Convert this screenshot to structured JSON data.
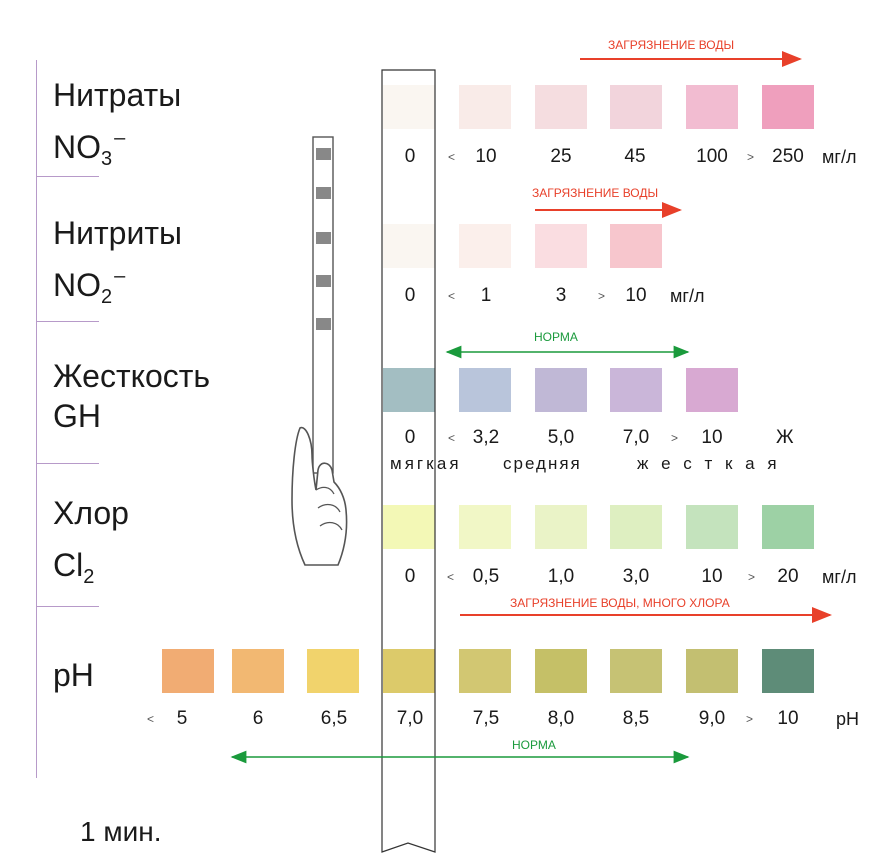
{
  "parameters": [
    {
      "name": "Нитраты",
      "formula": {
        "base": "NO",
        "sub": "3",
        "sup": "–"
      },
      "swatches": [
        "#faf6f1",
        "#f9ebe8",
        "#f5dde0",
        "#f2d4dc",
        "#f2bcd1",
        "#ef9fbd"
      ],
      "values": [
        "0",
        "10",
        "25",
        "45",
        "100",
        "250"
      ],
      "comparators": [
        "<",
        ">"
      ],
      "unit": "мг/л",
      "note": "ЗАГРЯЗНЕНИЕ ВОДЫ"
    },
    {
      "name": "Нитриты",
      "formula": {
        "base": "NO",
        "sub": "2",
        "sup": "–"
      },
      "swatches": [
        "#faf6f1",
        "#fbefeb",
        "#fadde1",
        "#f7c6cd"
      ],
      "values": [
        "0",
        "1",
        "3",
        "10"
      ],
      "comparators": [
        "<",
        ">"
      ],
      "unit": "мг/л",
      "note": "ЗАГРЯЗНЕНИЕ ВОДЫ"
    },
    {
      "name": "Жесткость",
      "formula": {
        "base": "GH"
      },
      "swatches": [
        "#a3bec2",
        "#b9c5db",
        "#c0b8d6",
        "#cab6d9",
        "#d8a9d2"
      ],
      "values": [
        "0",
        "3,2",
        "5,0",
        "7,0",
        "10"
      ],
      "comparators": [
        "<",
        ">"
      ],
      "unit": "Ж",
      "note": "НОРМА",
      "scale_words": [
        "мягкая",
        "средняя",
        "ж е с т к а я"
      ]
    },
    {
      "name": "Хлор",
      "formula": {
        "base": "Cl",
        "sub": "2"
      },
      "swatches": [
        "#f3f8b6",
        "#f1f7c6",
        "#eaf3c7",
        "#deefc1",
        "#c4e3bd",
        "#9dd1a5"
      ],
      "values": [
        "0",
        "0,5",
        "1,0",
        "3,0",
        "10",
        "20"
      ],
      "comparators": [
        "<",
        ">"
      ],
      "unit": "мг/л",
      "note": "ЗАГРЯЗНЕНИЕ ВОДЫ, МНОГО ХЛОРА"
    },
    {
      "name": "pH",
      "swatches": [
        "#f1ac73",
        "#f2b872",
        "#f1d36c",
        "#dcca6a",
        "#d2c772",
        "#c5c067",
        "#c6c274",
        "#c3bf71",
        "#5e8c78"
      ],
      "values": [
        "5",
        "6",
        "6,5",
        "7,0",
        "7,5",
        "8,0",
        "8,5",
        "9,0",
        "10"
      ],
      "comparators": [
        "<",
        ">"
      ],
      "unit": "pH",
      "note": "НОРМА"
    }
  ],
  "time_label": "1 мин.",
  "colors": {
    "red_arrow": "#e8402a",
    "green_arrow": "#1a9a3c",
    "divider": "#b79ac9",
    "strip_outline": "#333333"
  },
  "icons": {
    "hand": "hand-holding-strip-icon",
    "strip": "test-strip-icon"
  }
}
